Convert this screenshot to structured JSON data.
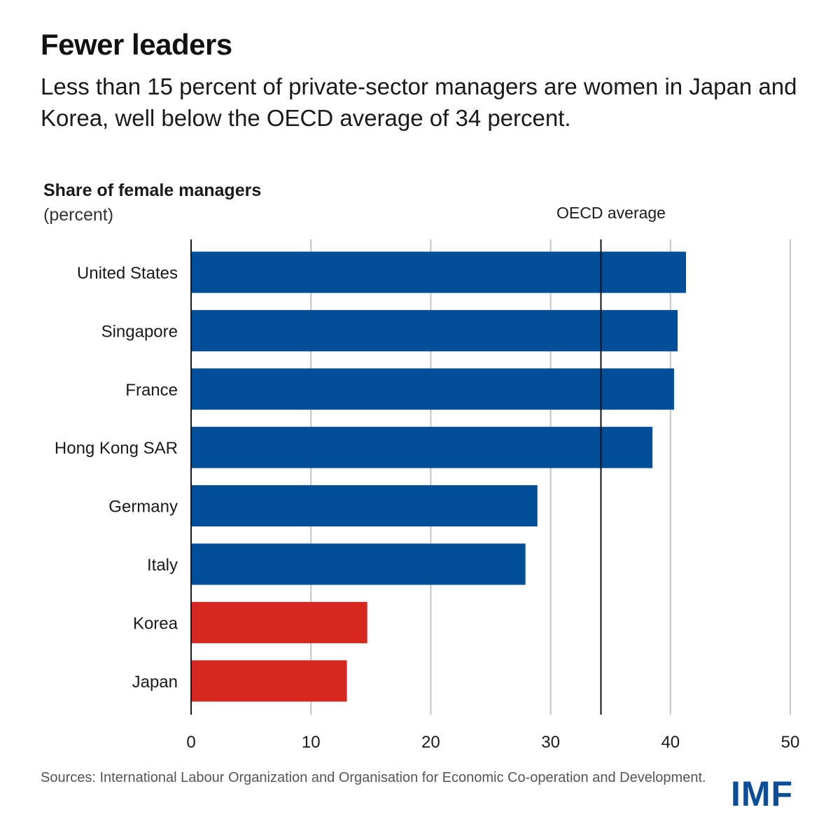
{
  "header": {
    "title": "Fewer leaders",
    "subtitle": "Less than 15 percent of private-sector managers are women in Japan and Korea, well below the OECD average of 34 percent."
  },
  "chart_data": {
    "type": "bar",
    "orientation": "horizontal",
    "title": "Share of female managers",
    "unit_label": "(percent)",
    "xlabel": "",
    "ylabel": "",
    "xlim": [
      0,
      50
    ],
    "ticks": [
      0,
      10,
      20,
      30,
      40,
      50
    ],
    "grid": true,
    "categories": [
      "United States",
      "Singapore",
      "France",
      "Hong Kong SAR",
      "Germany",
      "Italy",
      "Korea",
      "Japan"
    ],
    "values": [
      41.3,
      40.6,
      40.3,
      38.5,
      28.9,
      27.9,
      14.7,
      13.0
    ],
    "highlighted": [
      false,
      false,
      false,
      false,
      false,
      false,
      true,
      true
    ],
    "reference_line": {
      "label": "OECD average",
      "value": 34.2
    }
  },
  "colors": {
    "bar": "#034e98",
    "highlight": "#d6281f",
    "grid": "#c4c4c4",
    "axis": "#1a1a1a",
    "logo": "#0b4d96"
  },
  "footer": {
    "source": "Sources: International Labour Organization and Organisation for Economic Co-operation and Development.",
    "logo": "IMF"
  }
}
